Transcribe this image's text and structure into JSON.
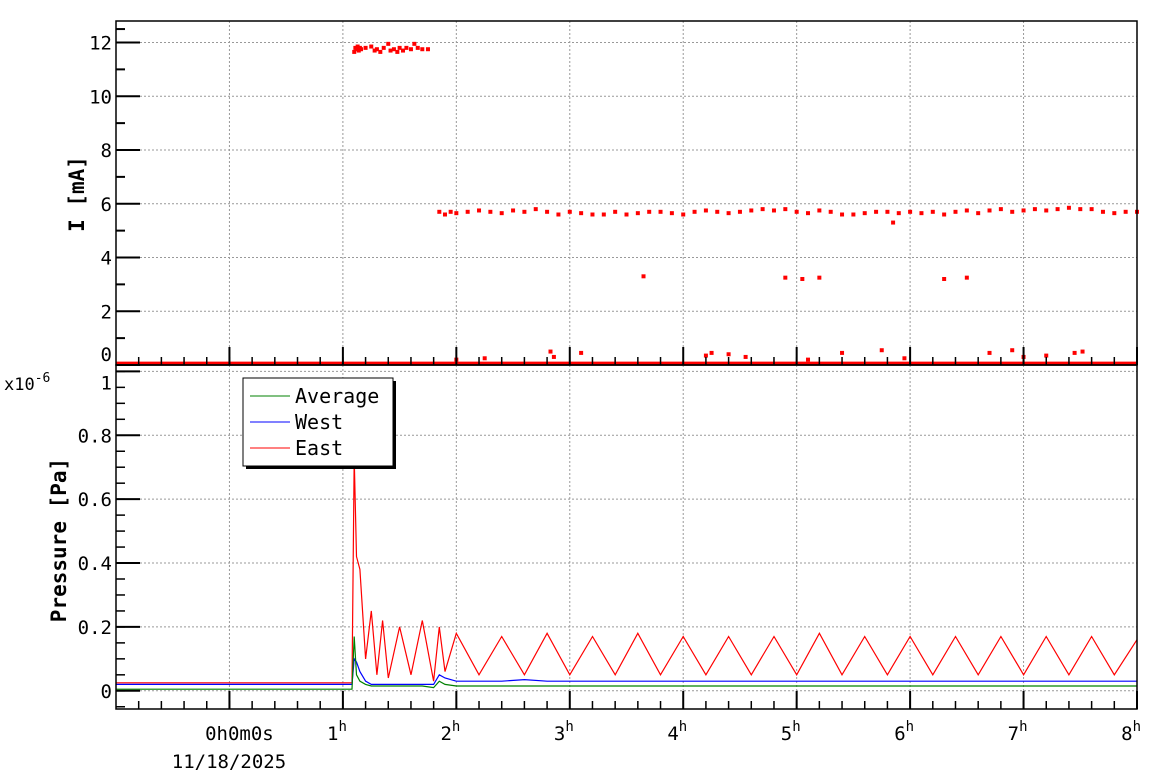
{
  "chart_data": [
    {
      "type": "scatter",
      "ylabel": "I [mA]",
      "xlim_hours": [
        -1,
        8
      ],
      "ylim": [
        0,
        12.8
      ],
      "grid": true,
      "y_ticks": [
        "0",
        "2",
        "4",
        "6",
        "8",
        "10",
        "12"
      ],
      "color": "#ff0000",
      "runs": [
        {
          "t": [
            -1,
            8
          ],
          "I": [
            0.05,
            0.05
          ],
          "style": "dense"
        },
        {
          "t": [
            1.1,
            1.11,
            1.12,
            1.13,
            1.14,
            1.15,
            1.16,
            1.2,
            1.25,
            1.28,
            1.3,
            1.33,
            1.36,
            1.4,
            1.42,
            1.45,
            1.48,
            1.5,
            1.53,
            1.56,
            1.6,
            1.63,
            1.66,
            1.7,
            1.75
          ],
          "I": [
            11.65,
            11.8,
            11.75,
            11.85,
            11.7,
            11.8,
            11.75,
            11.8,
            11.85,
            11.7,
            11.75,
            11.65,
            11.8,
            11.95,
            11.7,
            11.75,
            11.65,
            11.8,
            11.7,
            11.8,
            11.75,
            11.95,
            11.8,
            11.75,
            11.75
          ],
          "style": "points"
        },
        {
          "t": [
            1.85,
            1.9,
            1.95,
            2.0,
            2.1,
            2.2,
            2.3,
            2.4,
            2.5,
            2.6,
            2.7,
            2.8,
            2.9,
            3.0,
            3.1,
            3.2,
            3.3,
            3.4,
            3.5,
            3.6,
            3.7,
            3.8,
            3.9,
            4.0,
            4.1,
            4.2,
            4.3,
            4.4,
            4.5,
            4.6,
            4.7,
            4.8,
            4.9,
            5.0,
            5.1,
            5.2,
            5.3,
            5.4,
            5.5,
            5.6,
            5.7,
            5.8,
            5.9,
            6.0,
            6.1,
            6.2,
            6.3,
            6.4,
            6.5,
            6.6,
            6.7,
            6.8,
            6.9,
            7.0,
            7.1,
            7.2,
            7.3,
            7.4,
            7.5,
            7.6,
            7.7,
            7.8,
            7.9,
            8.0
          ],
          "I": [
            5.7,
            5.6,
            5.7,
            5.65,
            5.7,
            5.75,
            5.7,
            5.65,
            5.75,
            5.7,
            5.8,
            5.7,
            5.6,
            5.7,
            5.65,
            5.6,
            5.6,
            5.7,
            5.6,
            5.65,
            5.7,
            5.7,
            5.65,
            5.6,
            5.7,
            5.75,
            5.7,
            5.65,
            5.7,
            5.75,
            5.8,
            5.75,
            5.8,
            5.7,
            5.65,
            5.75,
            5.7,
            5.6,
            5.6,
            5.65,
            5.7,
            5.7,
            5.65,
            5.7,
            5.65,
            5.7,
            5.6,
            5.7,
            5.75,
            5.65,
            5.75,
            5.8,
            5.7,
            5.75,
            5.8,
            5.75,
            5.8,
            5.85,
            5.8,
            5.8,
            5.7,
            5.65,
            5.7,
            5.7
          ],
          "style": "points"
        },
        {
          "t": [
            3.65,
            4.9,
            5.05,
            5.2,
            6.3,
            6.5,
            5.85
          ],
          "I": [
            3.3,
            3.25,
            3.2,
            3.25,
            3.2,
            3.25,
            5.3
          ],
          "style": "points"
        },
        {
          "t": [
            2.83,
            2.86,
            3.1,
            2.25,
            4.25,
            4.4,
            4.55,
            4.2,
            5.4,
            5.75,
            5.95,
            6.7,
            6.9,
            7.0,
            7.2,
            7.45,
            7.52,
            5.1,
            2.0
          ],
          "I": [
            0.5,
            0.3,
            0.45,
            0.25,
            0.45,
            0.4,
            0.3,
            0.35,
            0.45,
            0.55,
            0.25,
            0.45,
            0.55,
            0.3,
            0.35,
            0.45,
            0.5,
            0.2,
            0.2
          ],
          "style": "points"
        }
      ]
    },
    {
      "type": "line",
      "ylabel": "Pressure [Pa]",
      "y_exponent": "x10",
      "y_exponent_power": "-6",
      "xlim_hours": [
        -1,
        8
      ],
      "ylim": [
        -0.057,
        1.02
      ],
      "grid": true,
      "y_ticks": [
        "0",
        "0.2",
        "0.4",
        "0.6",
        "0.8",
        "1"
      ],
      "x_ticks": [
        "0",
        "1",
        "2",
        "3",
        "4",
        "5",
        "6",
        "7",
        "8"
      ],
      "x_origin_label": "0h0m0s",
      "x_date_label": "11/18/2025",
      "legend_position": "top-left",
      "x": [
        -1,
        1.08,
        1.1,
        1.12,
        1.15,
        1.2,
        1.25,
        1.3,
        1.35,
        1.4,
        1.5,
        1.6,
        1.7,
        1.8,
        1.85,
        1.9,
        2.0,
        2.2,
        2.4,
        2.6,
        2.8,
        3.0,
        3.2,
        3.4,
        3.6,
        3.8,
        4.0,
        4.2,
        4.4,
        4.6,
        4.8,
        5.0,
        5.2,
        5.4,
        5.6,
        5.8,
        6.0,
        6.2,
        6.4,
        6.6,
        6.8,
        7.0,
        7.2,
        7.4,
        7.6,
        7.8,
        8.0
      ],
      "series": [
        {
          "name": "Average",
          "color": "#008000",
          "values": [
            0.005,
            0.005,
            0.17,
            0.05,
            0.03,
            0.02,
            0.015,
            0.015,
            0.015,
            0.015,
            0.015,
            0.015,
            0.015,
            0.01,
            0.03,
            0.02,
            0.015,
            0.015,
            0.015,
            0.015,
            0.015,
            0.015,
            0.015,
            0.015,
            0.015,
            0.015,
            0.015,
            0.015,
            0.015,
            0.015,
            0.015,
            0.015,
            0.015,
            0.015,
            0.015,
            0.015,
            0.015,
            0.015,
            0.015,
            0.015,
            0.015,
            0.015,
            0.015,
            0.015,
            0.015,
            0.015,
            0.015
          ]
        },
        {
          "name": "West",
          "color": "#0000ff",
          "values": [
            0.02,
            0.02,
            0.1,
            0.09,
            0.06,
            0.03,
            0.02,
            0.02,
            0.02,
            0.02,
            0.02,
            0.02,
            0.02,
            0.02,
            0.05,
            0.04,
            0.03,
            0.03,
            0.03,
            0.035,
            0.03,
            0.03,
            0.03,
            0.03,
            0.03,
            0.03,
            0.03,
            0.03,
            0.03,
            0.03,
            0.03,
            0.03,
            0.03,
            0.03,
            0.03,
            0.03,
            0.03,
            0.03,
            0.03,
            0.03,
            0.03,
            0.03,
            0.03,
            0.03,
            0.03,
            0.03,
            0.03
          ]
        },
        {
          "name": "East",
          "color": "#ff0000",
          "values": [
            0.025,
            0.025,
            0.73,
            0.42,
            0.38,
            0.1,
            0.25,
            0.05,
            0.22,
            0.04,
            0.2,
            0.05,
            0.22,
            0.03,
            0.2,
            0.06,
            0.18,
            0.05,
            0.17,
            0.05,
            0.18,
            0.05,
            0.17,
            0.05,
            0.18,
            0.05,
            0.17,
            0.05,
            0.17,
            0.05,
            0.17,
            0.05,
            0.18,
            0.05,
            0.17,
            0.05,
            0.17,
            0.05,
            0.17,
            0.05,
            0.17,
            0.05,
            0.17,
            0.05,
            0.17,
            0.05,
            0.16
          ]
        }
      ]
    }
  ]
}
